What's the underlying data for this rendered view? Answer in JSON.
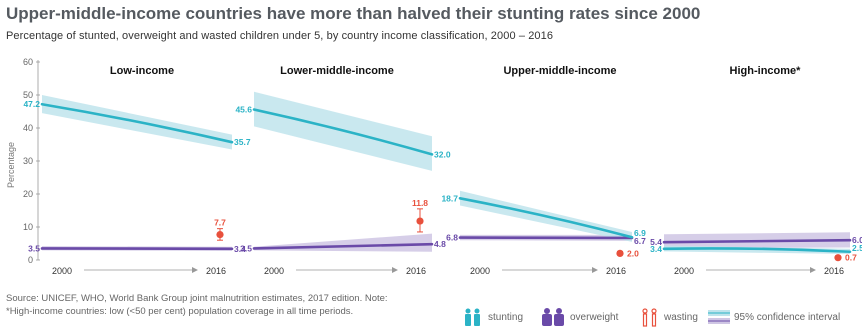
{
  "title": "Upper-middle-income countries have more than halved their stunting rates since 2000",
  "subtitle": "Percentage of stunted, overweight and wasted children under 5, by country income classification, 2000 – 2016",
  "source_lines": [
    "Source: UNICEF, WHO, World Bank Group joint malnutrition estimates, 2017 edition. Note:",
    "*High-income countries: low (<50 per cent) population coverage in all time periods."
  ],
  "legend": {
    "stunting": "stunting",
    "overweight": "overweight",
    "wasting": "wasting",
    "ci": "95% confidence interval"
  },
  "colors": {
    "stunting": "#2bb3c6",
    "stunting_ci": "#bfe4ec",
    "overweight": "#6a4aa8",
    "overweight_ci": "#cfc6e4",
    "wasting": "#e8503c",
    "axis": "#999999",
    "text": "#333333"
  },
  "chart_data": {
    "type": "line",
    "ylabel": "Percentage",
    "ylim": [
      0,
      60
    ],
    "yticks": [
      "0",
      "10",
      "20",
      "30",
      "40",
      "50",
      "60"
    ],
    "x": [
      "2000",
      "2016"
    ],
    "panels": [
      {
        "title": "Low-income",
        "series": [
          {
            "name": "stunting",
            "values": [
              47.2,
              35.7
            ],
            "labels": [
              "47.2",
              "35.7"
            ],
            "ci": [
              [
                44.5,
                50.0
              ],
              [
                33.5,
                38.0
              ]
            ]
          },
          {
            "name": "overweight",
            "values": [
              3.5,
              3.4
            ],
            "labels": [
              "3.5",
              "3.4"
            ],
            "ci": [
              [
                2.9,
                4.2
              ],
              [
                2.8,
                4.0
              ]
            ]
          },
          {
            "name": "wasting",
            "values": [
              null,
              7.7
            ],
            "labels": [
              "",
              "7.7"
            ],
            "ci": [
              null,
              [
                6.0,
                9.5
              ]
            ]
          }
        ]
      },
      {
        "title": "Lower-middle-income",
        "series": [
          {
            "name": "stunting",
            "values": [
              45.6,
              32.0
            ],
            "labels": [
              "45.6",
              "32.0"
            ],
            "ci": [
              [
                40.5,
                51.0
              ],
              [
                27.0,
                37.5
              ]
            ]
          },
          {
            "name": "overweight",
            "values": [
              3.5,
              4.8
            ],
            "labels": [
              "3.5",
              "4.8"
            ],
            "ci": [
              [
                2.9,
                4.0
              ],
              [
                2.5,
                8.0
              ]
            ]
          },
          {
            "name": "wasting",
            "values": [
              null,
              11.8
            ],
            "labels": [
              "",
              "11.8"
            ],
            "ci": [
              null,
              [
                8.5,
                15.5
              ]
            ]
          }
        ]
      },
      {
        "title": "Upper-middle-income",
        "series": [
          {
            "name": "stunting",
            "values": [
              18.7,
              6.9
            ],
            "labels": [
              "18.7",
              "6.9"
            ],
            "ci": [
              [
                16.5,
                21.0
              ],
              [
                5.5,
                8.5
              ]
            ]
          },
          {
            "name": "overweight",
            "values": [
              6.8,
              6.7
            ],
            "labels": [
              "6.8",
              "6.7"
            ],
            "ci": [
              [
                6.0,
                7.6
              ],
              [
                5.8,
                7.6
              ]
            ]
          },
          {
            "name": "wasting",
            "values": [
              null,
              2.0
            ],
            "labels": [
              "",
              "2.0"
            ],
            "ci": [
              null,
              [
                1.5,
                2.6
              ]
            ]
          }
        ]
      },
      {
        "title": "High-income*",
        "series": [
          {
            "name": "stunting",
            "values": [
              3.4,
              2.5
            ],
            "labels": [
              "3.4",
              "2.5"
            ],
            "ci": [
              [
                2.6,
                4.4
              ],
              [
                1.8,
                3.4
              ]
            ]
          },
          {
            "name": "overweight",
            "values": [
              5.4,
              6.0
            ],
            "labels": [
              "5.4",
              "6.0"
            ],
            "ci": [
              [
                3.5,
                7.8
              ],
              [
                3.8,
                8.4
              ]
            ]
          },
          {
            "name": "wasting",
            "values": [
              null,
              0.7
            ],
            "labels": [
              "",
              "0.7"
            ],
            "ci": [
              null,
              [
                0.4,
                1.0
              ]
            ]
          }
        ]
      }
    ]
  }
}
